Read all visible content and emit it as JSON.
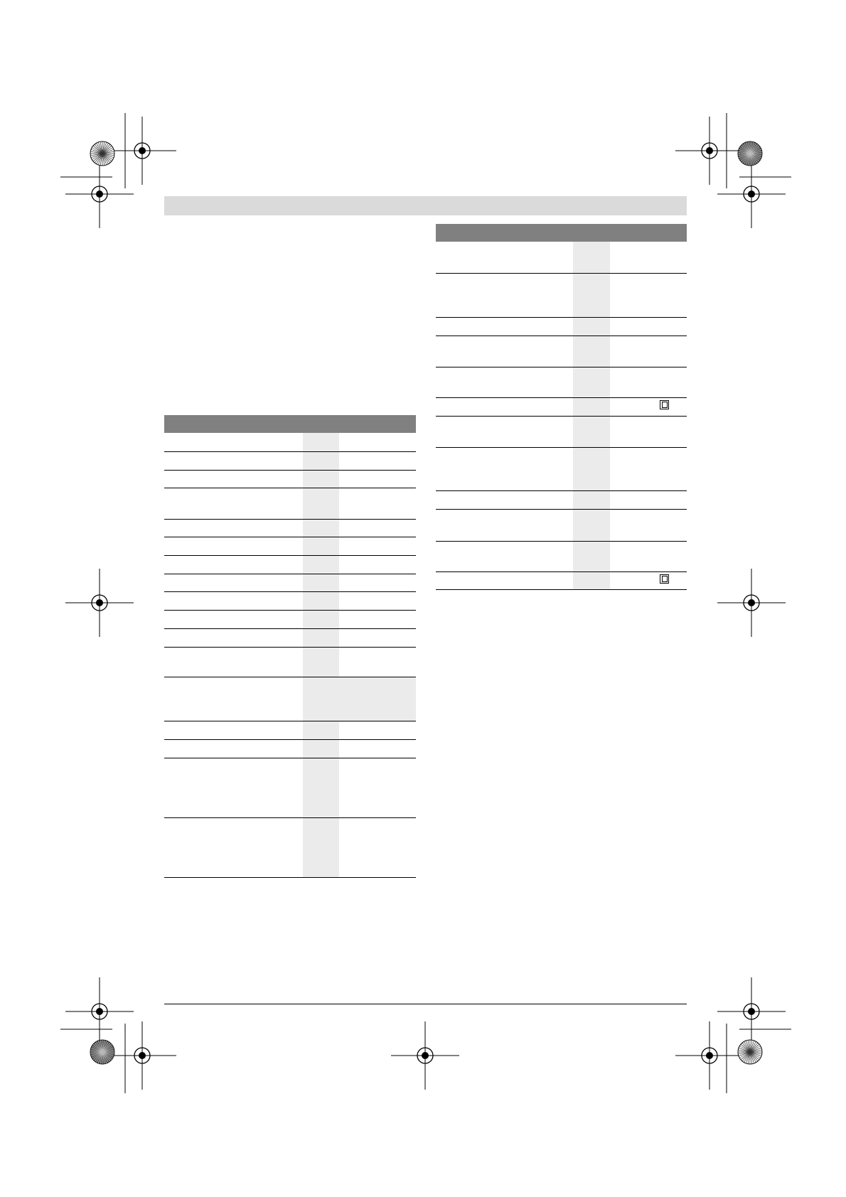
{
  "colors": {
    "header_band": "#dadada",
    "table_header": "#808080",
    "shaded_column": "#ebebeb",
    "rules": "#000000"
  },
  "icons": {
    "double_insulation": "double-square-icon",
    "registration_mark": "crosshair-circle-icon",
    "color_wheel": "starburst-icon"
  }
}
